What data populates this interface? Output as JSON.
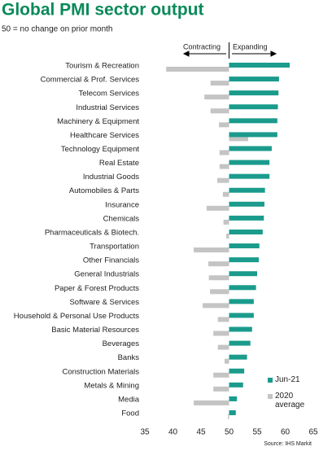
{
  "chart_data": {
    "type": "hbar",
    "title": "Global PMI sector output",
    "subtitle": "50 = no change on prior month",
    "annotations": {
      "left": "Contracting",
      "right": "Expanding"
    },
    "source": "Source: IHS Markit",
    "categories": [
      "Tourism & Recreation",
      "Commercial & Prof. Services",
      "Telecom Services",
      "Industrial Services",
      "Machinery & Equipment",
      "Healthcare Services",
      "Technology Equipment",
      "Real Estate",
      "Industrial Goods",
      "Automobiles & Parts",
      "Insurance",
      "Chemicals",
      "Pharmaceuticals & Biotech.",
      "Transportation",
      "Other Financials",
      "General Industrials",
      "Paper & Forest Products",
      "Software & Services",
      "Household & Personal Use Products",
      "Basic Material Resources",
      "Beverages",
      "Banks",
      "Construction Materials",
      "Metals & Mining",
      "Media",
      "Food"
    ],
    "series": [
      {
        "name": "Jun-21",
        "color": "#1a9b8c",
        "values": [
          60.8,
          58.9,
          58.8,
          58.7,
          58.6,
          58.6,
          57.6,
          57.2,
          57.2,
          56.4,
          56.3,
          56.2,
          56.0,
          55.4,
          55.3,
          55.0,
          54.8,
          54.4,
          54.4,
          54.1,
          53.8,
          53.2,
          52.7,
          52.5,
          51.4,
          51.2
        ]
      },
      {
        "name": "2020 average",
        "color": "#c4c4c4",
        "values": [
          38.8,
          46.7,
          45.6,
          46.7,
          48.2,
          53.4,
          48.3,
          48.3,
          47.9,
          48.9,
          46.0,
          49.0,
          49.5,
          43.7,
          46.3,
          46.4,
          46.6,
          45.3,
          48.0,
          47.2,
          48.0,
          49.2,
          47.2,
          47.2,
          43.7,
          49.8
        ]
      }
    ],
    "bar_base": 50,
    "xlim": [
      35,
      65
    ],
    "xticks": [
      35,
      40,
      45,
      50,
      55,
      60,
      65
    ],
    "legend": "lower-right"
  }
}
